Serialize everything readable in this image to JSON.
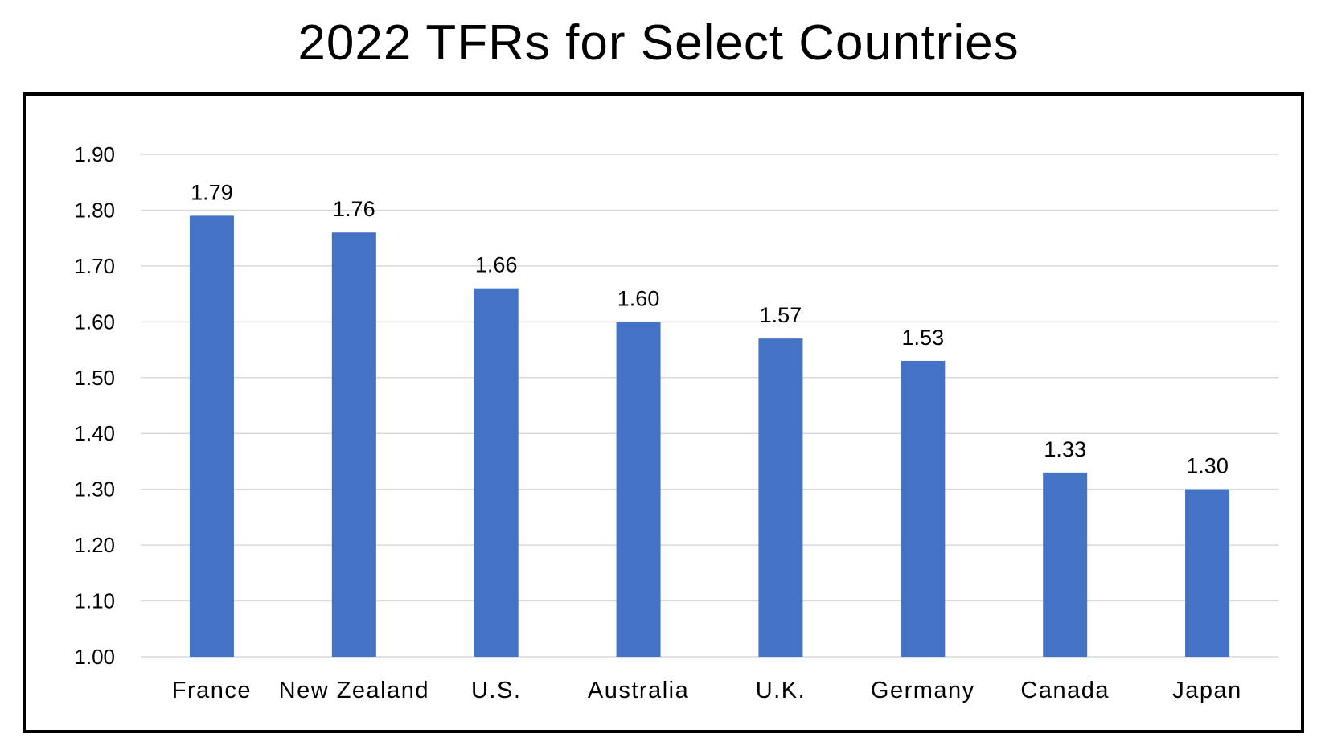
{
  "chart_data": {
    "type": "bar",
    "title": "2022 TFRs for Select Countries",
    "xlabel": "",
    "ylabel": "",
    "categories": [
      "France",
      "New Zealand",
      "U.S.",
      "Australia",
      "U.K.",
      "Germany",
      "Canada",
      "Japan"
    ],
    "values": [
      1.79,
      1.76,
      1.66,
      1.6,
      1.57,
      1.53,
      1.33,
      1.3
    ],
    "data_labels": [
      "1.79",
      "1.76",
      "1.66",
      "1.60",
      "1.57",
      "1.53",
      "1.33",
      "1.30"
    ],
    "ylim": [
      1.0,
      1.9
    ],
    "yticks": [
      1.0,
      1.1,
      1.2,
      1.3,
      1.4,
      1.5,
      1.6,
      1.7,
      1.8,
      1.9
    ],
    "ytick_labels": [
      "1.00",
      "1.10",
      "1.20",
      "1.30",
      "1.40",
      "1.50",
      "1.60",
      "1.70",
      "1.80",
      "1.90"
    ],
    "grid": true,
    "legend": "none",
    "bar_color": "#4472C4",
    "grid_color": "#D9D9D9",
    "border_color": "#000000"
  }
}
